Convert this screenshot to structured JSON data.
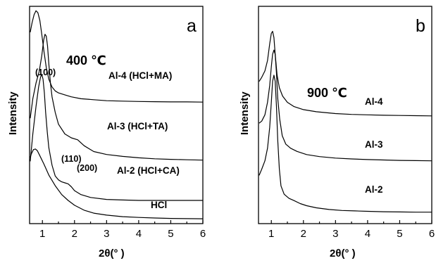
{
  "chart_data": [
    {
      "type": "line",
      "panel_label": "a",
      "temperature_label": "400 ℃",
      "xlabel": "2θ(°  )",
      "ylabel": "Intensity",
      "xlim": [
        0.6,
        6
      ],
      "xticks": [
        "1",
        "2",
        "3",
        "4",
        "5",
        "6"
      ],
      "annotations": [
        "(100)",
        "(110)",
        "(200)"
      ],
      "series": [
        {
          "name": "Al-4 (HCl+MA)",
          "x": [
            0.62,
            0.68,
            0.74,
            0.8,
            0.86,
            0.92,
            0.98,
            1.05,
            1.12,
            1.2,
            1.3,
            1.4,
            1.5,
            1.7,
            1.9,
            2.2,
            2.6,
            3.0,
            3.5,
            4.0,
            4.5,
            5.0,
            5.5,
            6.0
          ],
          "y": [
            86,
            91,
            95,
            97,
            96,
            92,
            85,
            76,
            68,
            62,
            58,
            56,
            55,
            54,
            53,
            52,
            51.5,
            51,
            50.8,
            50.6,
            50.5,
            50.4,
            50.4,
            50.3
          ]
        },
        {
          "name": "Al-3 (HCl+TA)",
          "x": [
            0.62,
            0.7,
            0.8,
            0.9,
            0.98,
            1.04,
            1.08,
            1.12,
            1.16,
            1.2,
            1.25,
            1.3,
            1.4,
            1.5,
            1.7,
            1.9,
            2.1,
            2.3,
            2.6,
            3.0,
            3.5,
            4.0,
            4.5,
            5.0,
            5.5,
            6.0
          ],
          "y": [
            42,
            52,
            60,
            66,
            74,
            82,
            85,
            84,
            79,
            70,
            60,
            53,
            45,
            39,
            34,
            32,
            31,
            28,
            25,
            23.5,
            22.5,
            21.8,
            21.3,
            21,
            20.8,
            20.6
          ]
        },
        {
          "name": "Al-2 (HCl+CA)",
          "x": [
            0.62,
            0.7,
            0.8,
            0.88,
            0.94,
            0.98,
            1.02,
            1.06,
            1.1,
            1.15,
            1.2,
            1.3,
            1.4,
            1.5,
            1.6,
            1.7,
            1.8,
            1.9,
            2.0,
            2.2,
            2.5,
            3.0,
            3.5,
            4.0,
            4.5,
            5.0,
            5.5,
            6.0
          ],
          "y": [
            20,
            34,
            48,
            58,
            63,
            64.5,
            62,
            55,
            45,
            35,
            27,
            18,
            12.5,
            10.5,
            9.5,
            9,
            8.5,
            7,
            5,
            3,
            1.5,
            0.5,
            0.2,
            0,
            0,
            0,
            0,
            0
          ]
        },
        {
          "name": "HCl",
          "x": [
            0.62,
            0.66,
            0.72,
            0.78,
            0.84,
            0.9,
            0.96,
            1.05,
            1.2,
            1.4,
            1.6,
            1.8,
            2.0,
            2.3,
            2.6,
            3.0,
            3.5,
            4.0,
            4.5,
            5.0,
            5.5,
            6.0
          ],
          "y": [
            22,
            24,
            26,
            26.3,
            25.5,
            23.5,
            21.5,
            18.5,
            13,
            7.5,
            3,
            0,
            -2.5,
            -5,
            -6.5,
            -7.5,
            -8.3,
            -8.7,
            -9,
            -9.2,
            -9.3,
            -9.4
          ]
        }
      ]
    },
    {
      "type": "line",
      "panel_label": "b",
      "temperature_label": "900 ℃",
      "xlabel": "2θ(°  )",
      "ylabel": "Intensity",
      "xlim": [
        0.6,
        6
      ],
      "xticks": [
        "1",
        "2",
        "3",
        "4",
        "5",
        "6"
      ],
      "series": [
        {
          "name": "Al-4",
          "x": [
            0.62,
            0.7,
            0.8,
            0.88,
            0.95,
            1.0,
            1.04,
            1.08,
            1.12,
            1.18,
            1.25,
            1.35,
            1.5,
            1.7,
            2.0,
            2.4,
            3.0,
            3.5,
            4.0,
            4.5,
            5.0,
            5.5,
            6.0
          ],
          "y": [
            60,
            62,
            65,
            70,
            78,
            83,
            84,
            81,
            73,
            63,
            57,
            53,
            50,
            48,
            46.5,
            45.5,
            44.6,
            44.2,
            44,
            43.8,
            43.7,
            43.6,
            43.5
          ]
        },
        {
          "name": "Al-3",
          "x": [
            0.62,
            0.7,
            0.8,
            0.88,
            0.95,
            1.0,
            1.04,
            1.08,
            1.12,
            1.16,
            1.2,
            1.26,
            1.34,
            1.45,
            1.6,
            1.8,
            2.1,
            2.5,
            3.0,
            3.5,
            4.0,
            4.5,
            5.0,
            5.5,
            6.0
          ],
          "y": [
            40,
            41,
            44,
            50,
            58,
            67,
            73,
            75,
            73,
            64,
            52,
            42,
            34,
            30,
            28,
            26.5,
            25,
            24,
            23.3,
            22.9,
            22.6,
            22.4,
            22.2,
            22.1,
            22
          ]
        },
        {
          "name": "Al-2",
          "x": [
            0.62,
            0.7,
            0.8,
            0.88,
            0.95,
            1.0,
            1.04,
            1.08,
            1.12,
            1.16,
            1.2,
            1.25,
            1.3,
            1.4,
            1.55,
            1.7,
            1.9,
            2.1,
            2.4,
            2.8,
            3.2,
            3.6,
            4.0,
            4.5,
            5.0,
            5.5,
            6.0
          ],
          "y": [
            15,
            18,
            22,
            28,
            38,
            50,
            60,
            63,
            60,
            48,
            32,
            18,
            10,
            6,
            4,
            3,
            1.5,
            0.5,
            -0.5,
            -1.3,
            -1.8,
            -2,
            -2.2,
            -2.4,
            -2.5,
            -2.6,
            -2.6
          ]
        }
      ]
    }
  ]
}
